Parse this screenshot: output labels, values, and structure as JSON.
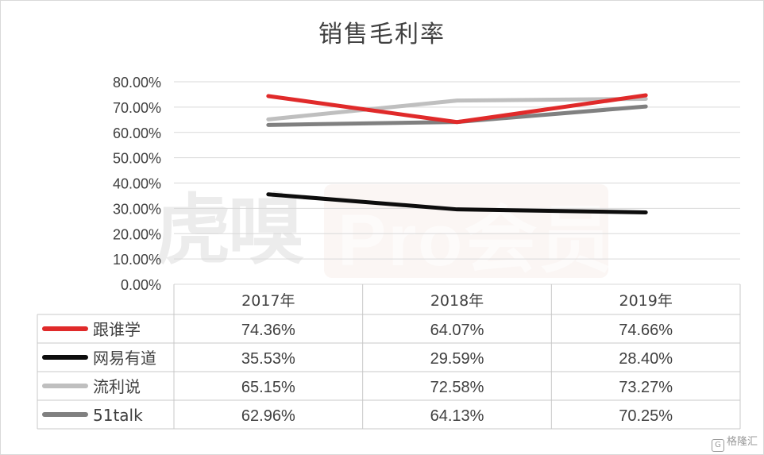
{
  "chart_data": {
    "type": "line",
    "title": "销售毛利率",
    "categories": [
      "2017年",
      "2018年",
      "2019年"
    ],
    "ylim": [
      0,
      80
    ],
    "yticks": [
      "80.00%",
      "70.00%",
      "60.00%",
      "50.00%",
      "40.00%",
      "30.00%",
      "20.00%",
      "10.00%",
      "0.00%"
    ],
    "grid": true,
    "legend": "data-table",
    "series": [
      {
        "name": "跟谁学",
        "values": [
          74.36,
          64.07,
          74.66
        ],
        "labels": [
          "74.36%",
          "64.07%",
          "74.66%"
        ],
        "color": "#e02a2a"
      },
      {
        "name": "网易有道",
        "values": [
          35.53,
          29.59,
          28.4
        ],
        "labels": [
          "35.53%",
          "29.59%",
          "28.40%"
        ],
        "color": "#0d0d0d"
      },
      {
        "name": "流利说",
        "values": [
          65.15,
          72.58,
          73.27
        ],
        "labels": [
          "65.15%",
          "72.58%",
          "73.27%"
        ],
        "color": "#bfbfbf"
      },
      {
        "name": "51talk",
        "values": [
          62.96,
          64.13,
          70.25
        ],
        "labels": [
          "62.96%",
          "64.13%",
          "70.25%"
        ],
        "color": "#808080"
      }
    ]
  },
  "watermark": {
    "text": "虎嗅",
    "pro": "Pro会员"
  },
  "brand": {
    "icon": "G",
    "text": "格隆汇"
  }
}
